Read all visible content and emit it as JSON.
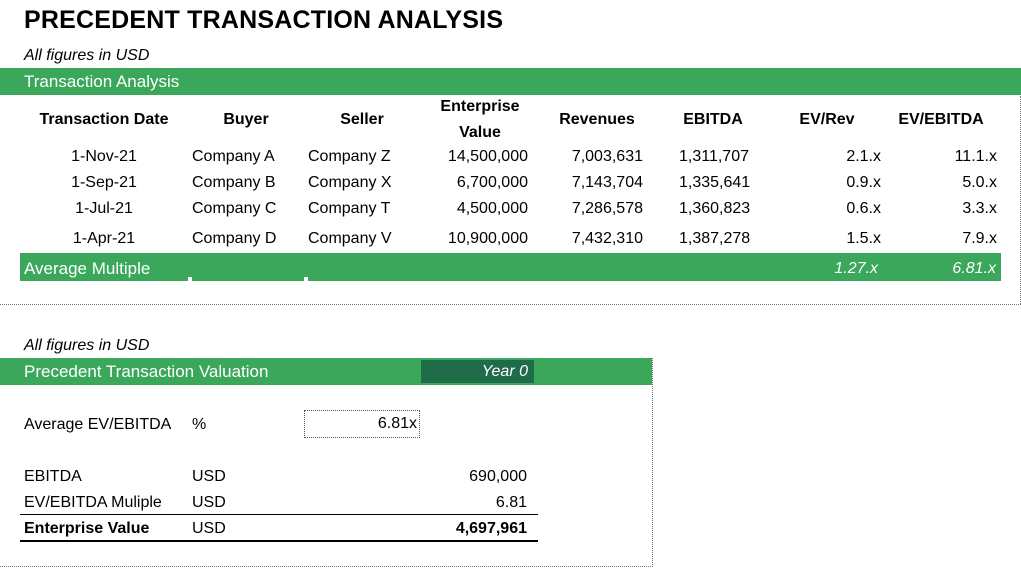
{
  "title": "PRECEDENT TRANSACTION ANALYSIS",
  "note_top": "All figures in USD",
  "section1": {
    "bar_label": "Transaction Analysis",
    "headers": {
      "date": "Transaction Date",
      "buyer": "Buyer",
      "seller": "Seller",
      "ev_line1": "Enterprise",
      "ev_line2": "Value",
      "revenues": "Revenues",
      "ebitda": "EBITDA",
      "ev_rev": "EV/Rev",
      "ev_ebitda": "EV/EBITDA"
    },
    "rows": [
      {
        "date": "1-Nov-21",
        "buyer": "Company A",
        "seller": "Company Z",
        "ev": "14,500,000",
        "revenues": "7,003,631",
        "ebitda": "1,311,707",
        "ev_rev": "2.1.x",
        "ev_ebitda": "11.1.x"
      },
      {
        "date": "1-Sep-21",
        "buyer": "Company B",
        "seller": "Company X",
        "ev": "6,700,000",
        "revenues": "7,143,704",
        "ebitda": "1,335,641",
        "ev_rev": "0.9.x",
        "ev_ebitda": "5.0.x"
      },
      {
        "date": "1-Jul-21",
        "buyer": "Company C",
        "seller": "Company T",
        "ev": "4,500,000",
        "revenues": "7,286,578",
        "ebitda": "1,360,823",
        "ev_rev": "0.6.x",
        "ev_ebitda": "3.3.x"
      },
      {
        "date": "1-Apr-21",
        "buyer": "Company D",
        "seller": "Company V",
        "ev": "10,900,000",
        "revenues": "7,432,310",
        "ebitda": "1,387,278",
        "ev_rev": "1.5.x",
        "ev_ebitda": "7.9.x"
      }
    ],
    "average": {
      "label": "Average Multiple",
      "ev_rev": "1.27.x",
      "ev_ebitda": "6.81.x"
    }
  },
  "note_bottom": "All figures in USD",
  "section2": {
    "bar_label": "Precedent Transaction Valuation",
    "year_label": "Year 0",
    "avg_label": "Average EV/EBITDA",
    "avg_unit": "%",
    "avg_value": "6.81x",
    "rows": [
      {
        "label": "EBITDA",
        "unit": "USD",
        "value": "690,000"
      },
      {
        "label": "EV/EBITDA Muliple",
        "unit": "USD",
        "value": "6.81"
      }
    ],
    "total": {
      "label": "Enterprise Value",
      "unit": "USD",
      "value": "4,697,961"
    }
  },
  "colors": {
    "green": "#3aa75a",
    "dark_green": "#206b4a"
  }
}
